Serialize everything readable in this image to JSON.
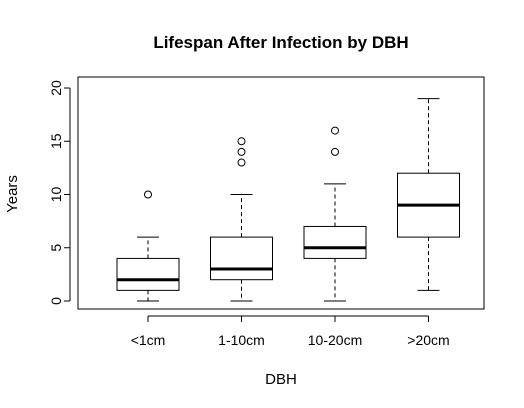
{
  "chart_data": {
    "type": "box",
    "title": "Lifespan After Infection by DBH",
    "xlabel": "DBH",
    "ylabel": "Years",
    "ylim": [
      0,
      20
    ],
    "yticks": [
      "0",
      "5",
      "10",
      "15",
      "20"
    ],
    "grid": false,
    "categories": [
      "<1cm",
      "1-10cm",
      "10-20cm",
      ">20cm"
    ],
    "boxes": [
      {
        "category": "<1cm",
        "min": 0,
        "q1": 1,
        "median": 2,
        "q3": 4,
        "max": 6,
        "outliers": [
          10
        ]
      },
      {
        "category": "1-10cm",
        "min": 0,
        "q1": 2,
        "median": 3,
        "q3": 6,
        "max": 10,
        "outliers": [
          13,
          14,
          15
        ]
      },
      {
        "category": "10-20cm",
        "min": 0,
        "q1": 4,
        "median": 5,
        "q3": 7,
        "max": 11,
        "outliers": [
          14,
          16
        ]
      },
      {
        "category": ">20cm",
        "min": 1,
        "q1": 6,
        "median": 9,
        "q3": 12,
        "max": 19,
        "outliers": []
      }
    ]
  }
}
